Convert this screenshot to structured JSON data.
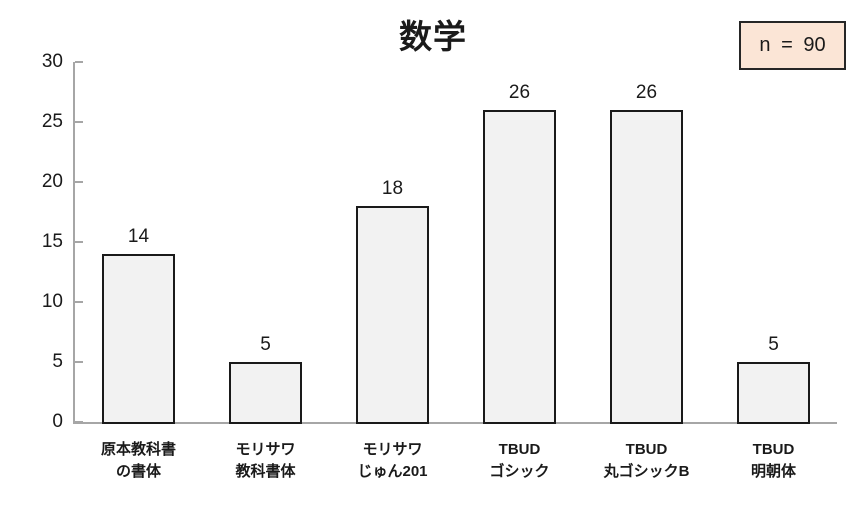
{
  "chart_data": {
    "type": "bar",
    "title": "数学",
    "categories": [
      [
        "原本教科書",
        "の書体"
      ],
      [
        "モリサワ",
        "教科書体"
      ],
      [
        "モリサワ",
        "じゅん201"
      ],
      [
        "TBUD",
        "ゴシック"
      ],
      [
        "TBUD",
        "丸ゴシックB"
      ],
      [
        "TBUD",
        "明朝体"
      ]
    ],
    "values": [
      14,
      5,
      18,
      26,
      26,
      5
    ],
    "data_labels": [
      14,
      5,
      18,
      26,
      26,
      5
    ],
    "ylim": [
      0,
      30
    ],
    "ytick_interval": 5,
    "ytick_labels": [
      "0",
      "5",
      "10",
      "15",
      "20",
      "25",
      "30"
    ],
    "grid": false,
    "legend": "none",
    "colors": {
      "bar_fill": "#f2f2f2",
      "bar_border": "#1a1a1a",
      "axis": "#a6a6a6",
      "text": "#1a1a1a"
    }
  },
  "annotation": {
    "text": "n = 90",
    "bg_color": "#fbe5d6",
    "border_color": "#262626"
  }
}
